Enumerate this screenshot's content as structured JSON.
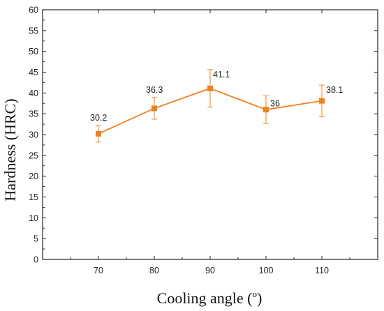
{
  "chart_data": {
    "type": "line",
    "xlabel": "Cooling angle (",
    "xlabel_superscript": "o",
    "xlabel_suffix": ")",
    "ylabel": "Hardness (HRC)",
    "x": [
      70,
      80,
      90,
      100,
      110
    ],
    "series": [
      {
        "values": [
          30.2,
          36.3,
          41.1,
          36,
          38.1
        ],
        "errors": [
          2.0,
          2.6,
          4.5,
          3.3,
          3.8
        ],
        "data_labels": [
          "30.2",
          "36.3",
          "41.1",
          "36",
          "38.1"
        ],
        "color": "#f0801a",
        "marker": "square"
      }
    ],
    "xlim": [
      60,
      120
    ],
    "ylim": [
      0,
      60
    ],
    "xticks": [
      "70",
      "80",
      "90",
      "100",
      "110"
    ],
    "yticks": [
      "0",
      "5",
      "10",
      "15",
      "20",
      "25",
      "30",
      "35",
      "40",
      "45",
      "50",
      "55",
      "60"
    ],
    "grid": false
  }
}
